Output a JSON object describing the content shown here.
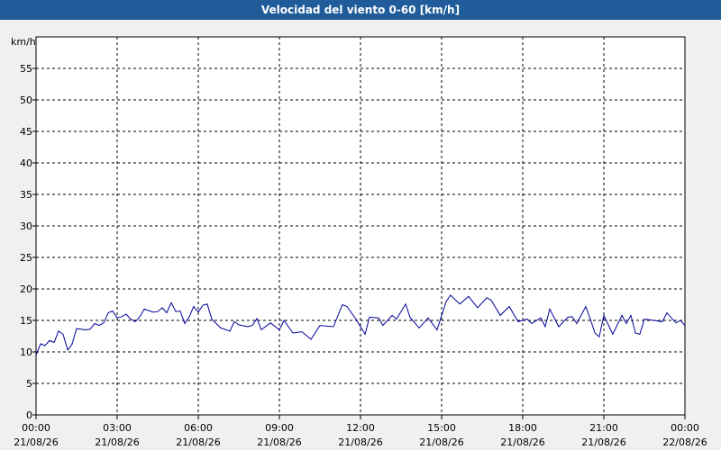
{
  "chart_data": {
    "type": "line",
    "title": "Velocidad del viento 0-60 [km/h]",
    "y_unit": "km/h",
    "ylim": [
      0,
      60
    ],
    "yticks": [
      0,
      5,
      10,
      15,
      20,
      25,
      30,
      35,
      40,
      45,
      50,
      55
    ],
    "xlim": [
      0,
      24
    ],
    "xticks": [
      {
        "value": 0,
        "label": [
          "00:00",
          "21/08/26"
        ]
      },
      {
        "value": 3,
        "label": [
          "03:00",
          "21/08/26"
        ]
      },
      {
        "value": 6,
        "label": [
          "06:00",
          "21/08/26"
        ]
      },
      {
        "value": 9,
        "label": [
          "09:00",
          "21/08/26"
        ]
      },
      {
        "value": 12,
        "label": [
          "12:00",
          "21/08/26"
        ]
      },
      {
        "value": 15,
        "label": [
          "15:00",
          "21/08/26"
        ]
      },
      {
        "value": 18,
        "label": [
          "18:00",
          "21/08/26"
        ]
      },
      {
        "value": 21,
        "label": [
          "21:00",
          "21/08/26"
        ]
      },
      {
        "value": 24,
        "label": [
          "00:00",
          "22/08/26"
        ]
      }
    ],
    "grid": true,
    "series": [
      {
        "name": "Velocidad del viento",
        "color": "#000099",
        "x": [
          0,
          0.17,
          0.33,
          0.5,
          0.67,
          0.83,
          1,
          1.17,
          1.33,
          1.5,
          1.83,
          2,
          2.17,
          2.33,
          2.5,
          2.67,
          2.83,
          3,
          3.17,
          3.33,
          3.5,
          3.67,
          3.83,
          4,
          4.33,
          4.5,
          4.67,
          4.83,
          5,
          5.17,
          5.33,
          5.5,
          5.67,
          5.83,
          6,
          6.17,
          6.33,
          6.5,
          6.83,
          7.17,
          7.33,
          7.5,
          7.83,
          8,
          8.17,
          8.33,
          8.67,
          9,
          9.17,
          9.5,
          9.83,
          10.17,
          10.5,
          11,
          11.33,
          11.5,
          11.83,
          12.17,
          12.33,
          12.67,
          12.83,
          13.17,
          13.33,
          13.67,
          13.83,
          14.17,
          14.5,
          14.83,
          15.17,
          15.33,
          15.67,
          16,
          16.33,
          16.67,
          16.83,
          17.17,
          17.5,
          17.83,
          18.17,
          18.33,
          18.67,
          18.83,
          19,
          19.33,
          19.67,
          19.83,
          20,
          20.33,
          20.5,
          20.67,
          20.83,
          21,
          21.33,
          21.67,
          21.83,
          22,
          22.17,
          22.33,
          22.5,
          22.83,
          23.17,
          23.33,
          23.67,
          23.83,
          24
        ],
        "values": [
          9.5,
          11.3,
          11,
          11.8,
          11.5,
          13.3,
          12.8,
          10.3,
          11.2,
          13.7,
          13.5,
          13.6,
          14.5,
          14.2,
          14.6,
          16.2,
          16.5,
          15.4,
          15.6,
          16,
          15.2,
          14.8,
          15.5,
          16.8,
          16.3,
          16.4,
          17,
          16.2,
          17.8,
          16.4,
          16.5,
          14.5,
          15.6,
          17.2,
          16.3,
          17.4,
          17.6,
          15.2,
          13.8,
          13.3,
          14.8,
          14.3,
          14,
          14.2,
          15.3,
          13.5,
          14.6,
          13.5,
          15,
          13,
          13.2,
          12,
          14.2,
          14,
          17.5,
          17.2,
          15.2,
          12.8,
          15.5,
          15.4,
          14.2,
          15.8,
          15.2,
          17.6,
          15.5,
          13.8,
          15.4,
          13.5,
          18,
          19,
          17.6,
          18.8,
          17,
          18.6,
          18.2,
          15.8,
          17.2,
          14.8,
          15.2,
          14.5,
          15.4,
          14,
          16.8,
          14,
          15.5,
          15.6,
          14.5,
          17.2,
          15.2,
          13,
          12.4,
          15.8,
          12.8,
          15.8,
          14.5,
          15.8,
          13,
          12.8,
          15.2,
          15,
          14.8,
          16.2,
          14.6,
          15,
          14.2
        ]
      }
    ]
  }
}
